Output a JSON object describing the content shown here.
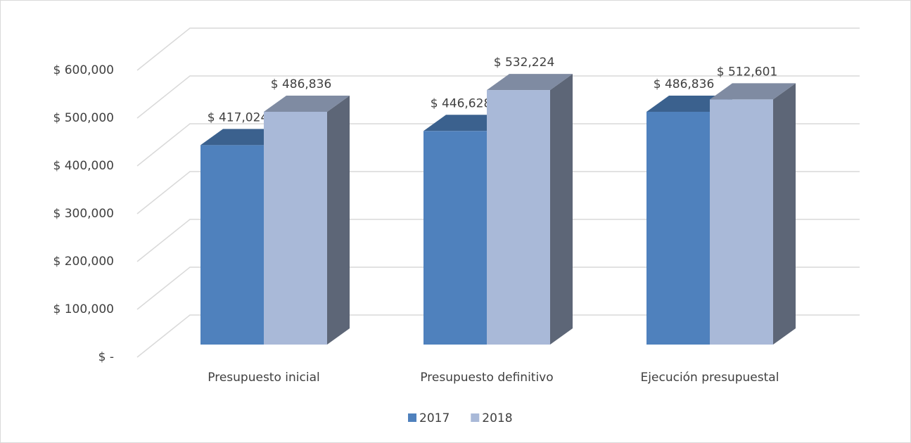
{
  "chart_data": {
    "type": "bar3d",
    "categories": [
      "Presupuesto inicial",
      "Presupuesto definitivo",
      "Ejecución presupuestal"
    ],
    "series": [
      {
        "name": "2017",
        "color": "#4f81bd",
        "values": [
          417024,
          446628,
          486836
        ],
        "value_labels": [
          "$ 417,024",
          "$ 446,628",
          "$ 486,836"
        ]
      },
      {
        "name": "2018",
        "color": "#a9b9d8",
        "values": [
          486836,
          532224,
          512601
        ],
        "value_labels": [
          "$ 486,836",
          "$ 532,224",
          "$ 512,601"
        ]
      }
    ],
    "ylim": [
      0,
      600000
    ],
    "yticks": [
      {
        "value": 0,
        "label": "$ -"
      },
      {
        "value": 100000,
        "label": "$ 100,000"
      },
      {
        "value": 200000,
        "label": "$ 200,000"
      },
      {
        "value": 300000,
        "label": "$ 300,000"
      },
      {
        "value": 400000,
        "label": "$ 400,000"
      },
      {
        "value": 500000,
        "label": "$ 500,000"
      },
      {
        "value": 600000,
        "label": "$ 600,000"
      }
    ],
    "grid": true,
    "legend": "bottom"
  }
}
